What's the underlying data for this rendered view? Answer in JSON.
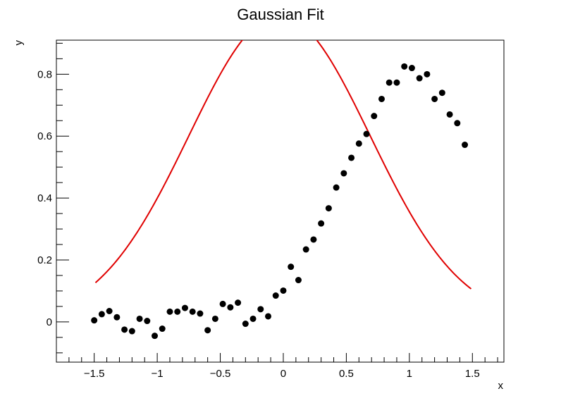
{
  "chart_data": {
    "type": "scatter",
    "title": "Gaussian Fit",
    "xlabel": "x",
    "ylabel": "y",
    "xlim": [
      -1.8,
      1.75
    ],
    "ylim": [
      -0.13,
      0.91
    ],
    "x_ticks": [
      -1.5,
      -1,
      -0.5,
      0,
      0.5,
      1,
      1.5
    ],
    "x_tick_labels": [
      "−1.5",
      "−1",
      "−0.5",
      "0",
      "0.5",
      "1",
      "1.5"
    ],
    "y_ticks": [
      0,
      0.2,
      0.4,
      0.6,
      0.8
    ],
    "y_tick_labels": [
      "0",
      "0.2",
      "0.4",
      "0.6",
      "0.8"
    ],
    "grid": false,
    "colors": {
      "points": "#000000",
      "fit": "#e00000"
    },
    "series": [
      {
        "kind": "points",
        "x": [
          -1.5,
          -1.44,
          -1.38,
          -1.32,
          -1.26,
          -1.2,
          -1.14,
          -1.08,
          -1.02,
          -0.96,
          -0.9,
          -0.84,
          -0.78,
          -0.72,
          -0.66,
          -0.6,
          -0.54,
          -0.48,
          -0.42,
          -0.36,
          -0.3,
          -0.24,
          -0.18,
          -0.12,
          -0.06,
          0,
          0.06,
          0.12,
          0.18,
          0.24,
          0.3,
          0.36,
          0.42,
          0.48,
          0.54,
          0.6,
          0.66,
          0.72,
          0.78,
          0.84,
          0.9,
          0.96,
          1.02,
          1.08,
          1.14,
          1.2,
          1.26,
          1.32,
          1.38,
          1.44
        ],
        "y": [
          0.005,
          0.025,
          0.035,
          0.015,
          -0.025,
          -0.03,
          0.01,
          0.003,
          -0.045,
          -0.022,
          0.033,
          0.033,
          0.045,
          0.033,
          0.027,
          -0.027,
          0.01,
          0.058,
          0.047,
          0.062,
          -0.006,
          0.01,
          0.041,
          0.018,
          0.085,
          0.101,
          0.178,
          0.135,
          0.234,
          0.266,
          0.318,
          0.367,
          0.434,
          0.48,
          0.53,
          0.576,
          0.607,
          0.665,
          0.72,
          0.773,
          0.773,
          0.825,
          0.82,
          0.787,
          0.8,
          0.72,
          0.74,
          0.67,
          0.642,
          0.572
        ]
      },
      {
        "kind": "fit-curve",
        "amplitude": 0.99,
        "mean": -0.03,
        "sigma": 0.72,
        "x_range": [
          -1.49,
          1.49
        ]
      }
    ]
  }
}
